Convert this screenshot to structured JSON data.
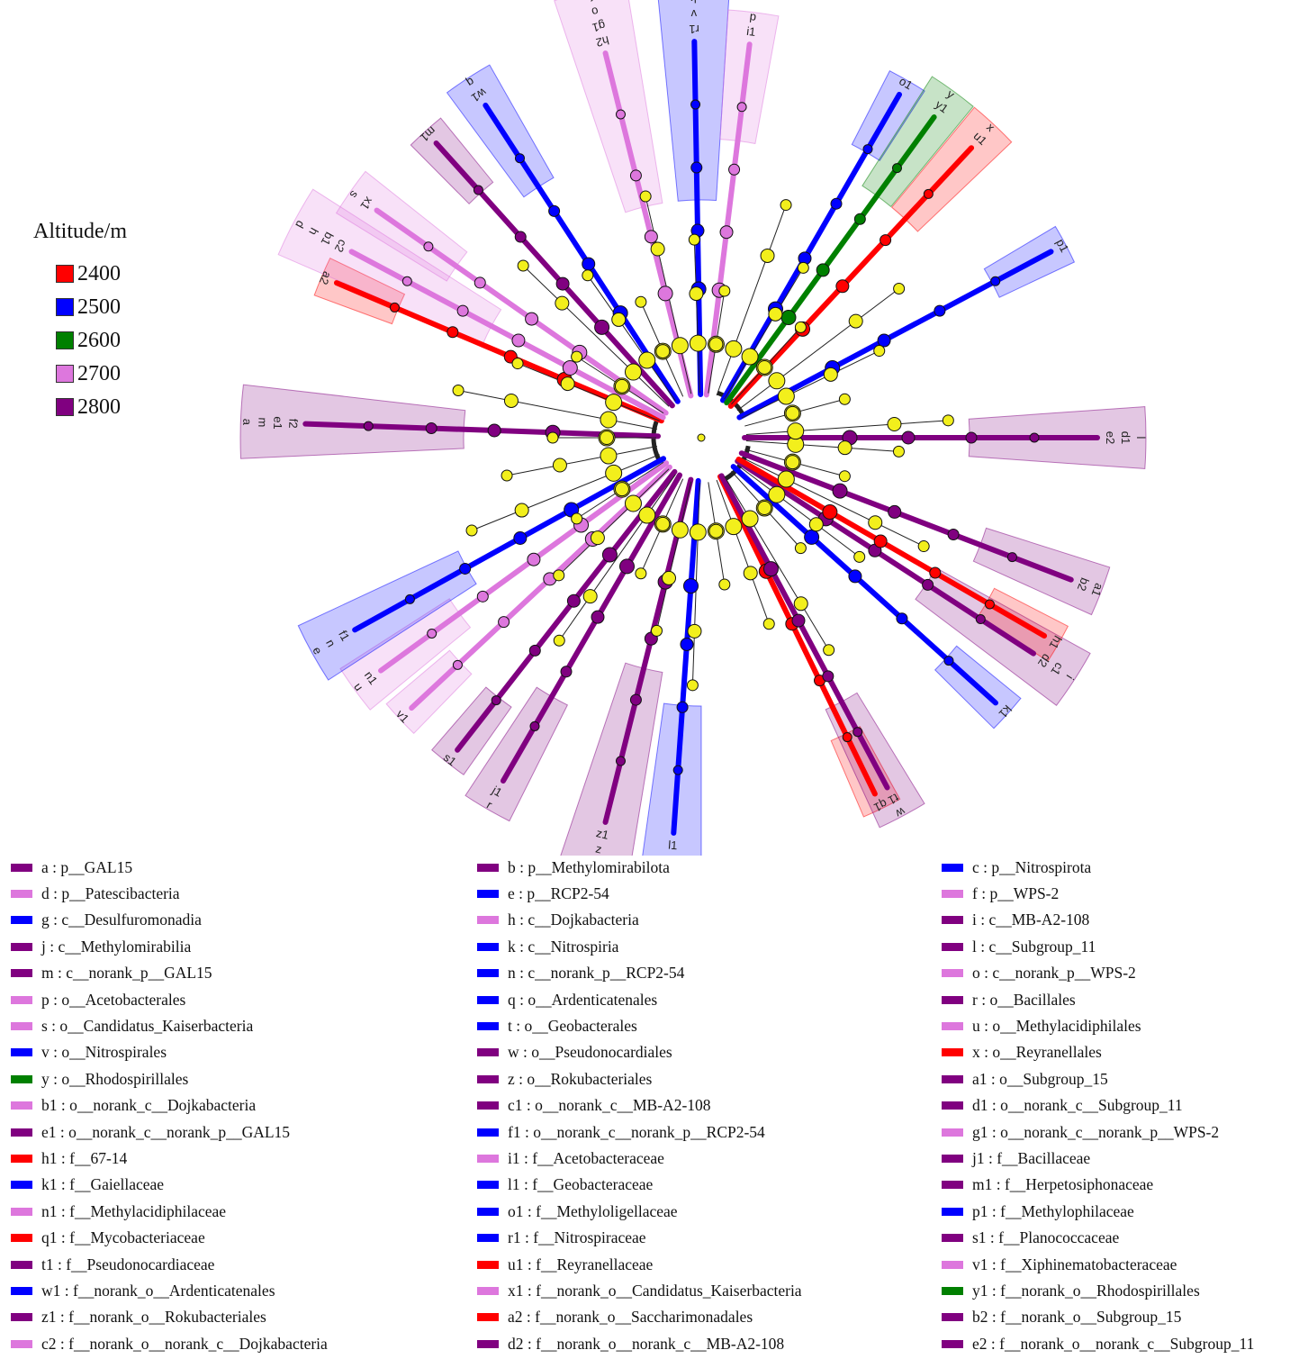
{
  "legend": {
    "title": "Altitude/m",
    "groups": [
      {
        "label": "2400",
        "color": "#ff0000"
      },
      {
        "label": "2500",
        "color": "#0000ff"
      },
      {
        "label": "2600",
        "color": "#008000"
      },
      {
        "label": "2700",
        "color": "#dd77dd"
      },
      {
        "label": "2800",
        "color": "#800080"
      }
    ]
  },
  "colors": {
    "2400": "#ff0000",
    "2500": "#0000ff",
    "2600": "#008000",
    "2700": "#dd77dd",
    "2800": "#800080",
    "node_neutral": "#f2ef1c"
  },
  "taxa": [
    {
      "key": "a",
      "name": "p__GAL15",
      "group": "2800"
    },
    {
      "key": "b",
      "name": "p__Methylomirabilota",
      "group": "2800"
    },
    {
      "key": "c",
      "name": "p__Nitrospirota",
      "group": "2500"
    },
    {
      "key": "d",
      "name": "p__Patescibacteria",
      "group": "2700"
    },
    {
      "key": "e",
      "name": "p__RCP2-54",
      "group": "2500"
    },
    {
      "key": "f",
      "name": "p__WPS-2",
      "group": "2700"
    },
    {
      "key": "g",
      "name": "c__Desulfuromonadia",
      "group": "2500"
    },
    {
      "key": "h",
      "name": "c__Dojkabacteria",
      "group": "2700"
    },
    {
      "key": "i",
      "name": "c__MB-A2-108",
      "group": "2800"
    },
    {
      "key": "j",
      "name": "c__Methylomirabilia",
      "group": "2800"
    },
    {
      "key": "k",
      "name": "c__Nitrospiria",
      "group": "2500"
    },
    {
      "key": "l",
      "name": "c__Subgroup_11",
      "group": "2800"
    },
    {
      "key": "m",
      "name": "c__norank_p__GAL15",
      "group": "2800"
    },
    {
      "key": "n",
      "name": "c__norank_p__RCP2-54",
      "group": "2500"
    },
    {
      "key": "o",
      "name": "c__norank_p__WPS-2",
      "group": "2700"
    },
    {
      "key": "p",
      "name": "o__Acetobacterales",
      "group": "2700"
    },
    {
      "key": "q",
      "name": "o__Ardenticatenales",
      "group": "2500"
    },
    {
      "key": "r",
      "name": "o__Bacillales",
      "group": "2800"
    },
    {
      "key": "s",
      "name": "o__Candidatus_Kaiserbacteria",
      "group": "2700"
    },
    {
      "key": "t",
      "name": "o__Geobacterales",
      "group": "2500"
    },
    {
      "key": "u",
      "name": "o__Methylacidiphilales",
      "group": "2700"
    },
    {
      "key": "v",
      "name": "o__Nitrospirales",
      "group": "2500"
    },
    {
      "key": "w",
      "name": "o__Pseudonocardiales",
      "group": "2800"
    },
    {
      "key": "x",
      "name": "o__Reyranellales",
      "group": "2400"
    },
    {
      "key": "y",
      "name": "o__Rhodospirillales",
      "group": "2600"
    },
    {
      "key": "z",
      "name": "o__Rokubacteriales",
      "group": "2800"
    },
    {
      "key": "a1",
      "name": "o__Subgroup_15",
      "group": "2800"
    },
    {
      "key": "b1",
      "name": "o__norank_c__Dojkabacteria",
      "group": "2700"
    },
    {
      "key": "c1",
      "name": "o__norank_c__MB-A2-108",
      "group": "2800"
    },
    {
      "key": "d1",
      "name": "o__norank_c__Subgroup_11",
      "group": "2800"
    },
    {
      "key": "e1",
      "name": "o__norank_c__norank_p__GAL15",
      "group": "2800"
    },
    {
      "key": "f1",
      "name": "o__norank_c__norank_p__RCP2-54",
      "group": "2500"
    },
    {
      "key": "g1",
      "name": "o__norank_c__norank_p__WPS-2",
      "group": "2700"
    },
    {
      "key": "h1",
      "name": "f__67-14",
      "group": "2400"
    },
    {
      "key": "i1",
      "name": "f__Acetobacteraceae",
      "group": "2700"
    },
    {
      "key": "j1",
      "name": "f__Bacillaceae",
      "group": "2800"
    },
    {
      "key": "k1",
      "name": "f__Gaiellaceae",
      "group": "2500"
    },
    {
      "key": "l1",
      "name": "f__Geobacteraceae",
      "group": "2500"
    },
    {
      "key": "m1",
      "name": "f__Herpetosiphonaceae",
      "group": "2800"
    },
    {
      "key": "n1",
      "name": "f__Methylacidiphilaceae",
      "group": "2700"
    },
    {
      "key": "o1",
      "name": "f__Methyloligellaceae",
      "group": "2500"
    },
    {
      "key": "p1",
      "name": "f__Methylophilaceae",
      "group": "2500"
    },
    {
      "key": "q1",
      "name": "f__Mycobacteriaceae",
      "group": "2400"
    },
    {
      "key": "r1",
      "name": "f__Nitrospiraceae",
      "group": "2500"
    },
    {
      "key": "s1",
      "name": "f__Planococcaceae",
      "group": "2800"
    },
    {
      "key": "t1",
      "name": "f__Pseudonocardiaceae",
      "group": "2800"
    },
    {
      "key": "u1",
      "name": "f__Reyranellaceae",
      "group": "2400"
    },
    {
      "key": "v1",
      "name": "f__Xiphinematobacteraceae",
      "group": "2700"
    },
    {
      "key": "w1",
      "name": "f__norank_o__Ardenticatenales",
      "group": "2500"
    },
    {
      "key": "x1",
      "name": "f__norank_o__Candidatus_Kaiserbacteria",
      "group": "2700"
    },
    {
      "key": "y1",
      "name": "f__norank_o__Rhodospirillales",
      "group": "2600"
    },
    {
      "key": "z1",
      "name": "f__norank_o__Rokubacteriales",
      "group": "2800"
    },
    {
      "key": "a2",
      "name": "f__norank_o__Saccharimonadales",
      "group": "2400"
    },
    {
      "key": "b2",
      "name": "f__norank_o__Subgroup_15",
      "group": "2800"
    },
    {
      "key": "c2",
      "name": "f__norank_o__norank_c__Dojkabacteria",
      "group": "2700"
    },
    {
      "key": "d2",
      "name": "f__norank_o__norank_c__MB-A2-108",
      "group": "2800"
    },
    {
      "key": "e2",
      "name": "f__norank_o__norank_c__Subgroup_11",
      "group": "2800"
    }
  ],
  "clades": [
    {
      "angle": 0,
      "group": "2800",
      "labels": [
        "e2",
        "d1",
        "l"
      ]
    },
    {
      "angle": 21,
      "group": "2800",
      "labels": [
        "b2",
        "a1"
      ]
    },
    {
      "angle": 33,
      "group": "2800",
      "labels": [
        "d2",
        "c1",
        "i"
      ]
    },
    {
      "angle": 30,
      "group": "2400",
      "labels": [
        "h1"
      ]
    },
    {
      "angle": 42,
      "group": "2500",
      "labels": [
        "k1"
      ]
    },
    {
      "angle": 64,
      "group": "2400",
      "labels": [
        "q1"
      ]
    },
    {
      "angle": 62,
      "group": "2800",
      "labels": [
        "t1",
        "w"
      ]
    },
    {
      "angle": 94,
      "group": "2500",
      "labels": [
        "l1",
        "t",
        "g"
      ]
    },
    {
      "angle": 104,
      "group": "2800",
      "labels": [
        "z1",
        "z",
        "j",
        "b"
      ]
    },
    {
      "angle": 120,
      "group": "2800",
      "labels": [
        "j1",
        "r"
      ]
    },
    {
      "angle": 128,
      "group": "2800",
      "labels": [
        "s1"
      ]
    },
    {
      "angle": 137,
      "group": "2700",
      "labels": [
        "v1"
      ]
    },
    {
      "angle": 144,
      "group": "2700",
      "labels": [
        "n1",
        "u"
      ]
    },
    {
      "angle": 151,
      "group": "2500",
      "labels": [
        "f1",
        "n",
        "e"
      ]
    },
    {
      "angle": 182,
      "group": "2800",
      "labels": [
        "f2",
        "e1",
        "m",
        "a"
      ]
    },
    {
      "angle": 203,
      "group": "2400",
      "labels": [
        "a2"
      ]
    },
    {
      "angle": 208,
      "group": "2700",
      "labels": [
        "c2",
        "b1",
        "h",
        "d"
      ]
    },
    {
      "angle": 215,
      "group": "2700",
      "labels": [
        "x1",
        "s"
      ]
    },
    {
      "angle": 228,
      "group": "2800",
      "labels": [
        "m1"
      ]
    },
    {
      "angle": 237,
      "group": "2500",
      "labels": [
        "w1",
        "q"
      ]
    },
    {
      "angle": 256,
      "group": "2700",
      "labels": [
        "h2",
        "g1",
        "o",
        "f"
      ]
    },
    {
      "angle": 269,
      "group": "2500",
      "labels": [
        "r1",
        "v",
        "k",
        "c"
      ]
    },
    {
      "angle": 277,
      "group": "2700",
      "labels": [
        "i1",
        "p"
      ]
    },
    {
      "angle": 300,
      "group": "2500",
      "labels": [
        "o1"
      ]
    },
    {
      "angle": 306,
      "group": "2600",
      "labels": [
        "y1",
        "y"
      ]
    },
    {
      "angle": 313,
      "group": "2400",
      "labels": [
        "u1",
        "x"
      ]
    },
    {
      "angle": 332,
      "group": "2500",
      "labels": [
        "p1"
      ]
    }
  ]
}
